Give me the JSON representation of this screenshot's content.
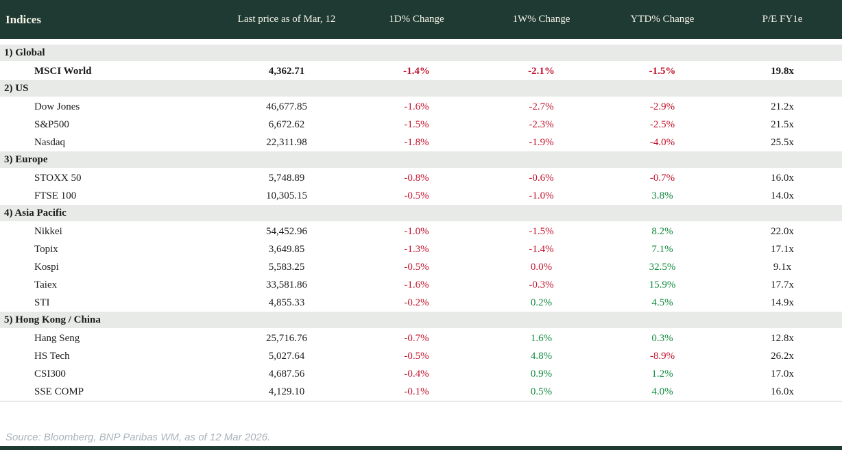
{
  "colors": {
    "header_bg": "#1e3a33",
    "header_text": "#f7f4e9",
    "section_bg": "#e7eae7",
    "negative": "#c1132d",
    "positive": "#0f8a3d",
    "source_text": "#a9b3bb"
  },
  "header": {
    "columns": [
      "Indices",
      "Last price as of Mar, 12",
      "1D% Change",
      "1W% Change",
      "YTD% Change",
      "P/E FY1e"
    ]
  },
  "table": {
    "rows": [
      {
        "type": "section",
        "label": "1) Global"
      },
      {
        "type": "data",
        "bold": true,
        "name": "MSCI World",
        "price": "4,362.71",
        "changes": [
          {
            "v": "-1.4%",
            "c": "neg"
          },
          {
            "v": "-2.1%",
            "c": "neg"
          },
          {
            "v": "-1.5%",
            "c": "neg"
          }
        ],
        "pe": "19.8x"
      },
      {
        "type": "section",
        "label": "2) US"
      },
      {
        "type": "data",
        "name": "Dow Jones",
        "price": "46,677.85",
        "changes": [
          {
            "v": "-1.6%",
            "c": "neg"
          },
          {
            "v": "-2.7%",
            "c": "neg"
          },
          {
            "v": "-2.9%",
            "c": "neg"
          }
        ],
        "pe": "21.2x"
      },
      {
        "type": "data",
        "name": "S&P500",
        "price": "6,672.62",
        "changes": [
          {
            "v": "-1.5%",
            "c": "neg"
          },
          {
            "v": "-2.3%",
            "c": "neg"
          },
          {
            "v": "-2.5%",
            "c": "neg"
          }
        ],
        "pe": "21.5x"
      },
      {
        "type": "data",
        "name": "Nasdaq",
        "price": "22,311.98",
        "changes": [
          {
            "v": "-1.8%",
            "c": "neg"
          },
          {
            "v": "-1.9%",
            "c": "neg"
          },
          {
            "v": "-4.0%",
            "c": "neg"
          }
        ],
        "pe": "25.5x"
      },
      {
        "type": "section",
        "label": "3) Europe"
      },
      {
        "type": "data",
        "name": "STOXX 50",
        "price": "5,748.89",
        "changes": [
          {
            "v": "-0.8%",
            "c": "neg"
          },
          {
            "v": "-0.6%",
            "c": "neg"
          },
          {
            "v": "-0.7%",
            "c": "neg"
          }
        ],
        "pe": "16.0x"
      },
      {
        "type": "data",
        "name": "FTSE 100",
        "price": "10,305.15",
        "changes": [
          {
            "v": "-0.5%",
            "c": "neg"
          },
          {
            "v": "-1.0%",
            "c": "neg"
          },
          {
            "v": "3.8%",
            "c": "pos"
          }
        ],
        "pe": "14.0x"
      },
      {
        "type": "section",
        "label": "4) Asia Pacific"
      },
      {
        "type": "data",
        "name": "Nikkei",
        "price": "54,452.96",
        "changes": [
          {
            "v": "-1.0%",
            "c": "neg"
          },
          {
            "v": "-1.5%",
            "c": "neg"
          },
          {
            "v": "8.2%",
            "c": "pos"
          }
        ],
        "pe": "22.0x"
      },
      {
        "type": "data",
        "name": "Topix",
        "price": "3,649.85",
        "changes": [
          {
            "v": "-1.3%",
            "c": "neg"
          },
          {
            "v": "-1.4%",
            "c": "neg"
          },
          {
            "v": "7.1%",
            "c": "pos"
          }
        ],
        "pe": "17.1x"
      },
      {
        "type": "data",
        "name": "Kospi",
        "price": "5,583.25",
        "changes": [
          {
            "v": "-0.5%",
            "c": "neg"
          },
          {
            "v": "0.0%",
            "c": "neg"
          },
          {
            "v": "32.5%",
            "c": "pos"
          }
        ],
        "pe": "9.1x"
      },
      {
        "type": "data",
        "name": "Taiex",
        "price": "33,581.86",
        "changes": [
          {
            "v": "-1.6%",
            "c": "neg"
          },
          {
            "v": "-0.3%",
            "c": "neg"
          },
          {
            "v": "15.9%",
            "c": "pos"
          }
        ],
        "pe": "17.7x"
      },
      {
        "type": "data",
        "name": "STI",
        "price": "4,855.33",
        "changes": [
          {
            "v": "-0.2%",
            "c": "neg"
          },
          {
            "v": "0.2%",
            "c": "pos"
          },
          {
            "v": "4.5%",
            "c": "pos"
          }
        ],
        "pe": "14.9x"
      },
      {
        "type": "section",
        "label": "5) Hong Kong / China"
      },
      {
        "type": "data",
        "name": "Hang Seng",
        "price": "25,716.76",
        "changes": [
          {
            "v": "-0.7%",
            "c": "neg"
          },
          {
            "v": "1.6%",
            "c": "pos"
          },
          {
            "v": "0.3%",
            "c": "pos"
          }
        ],
        "pe": "12.8x"
      },
      {
        "type": "data",
        "name": "HS Tech",
        "price": "5,027.64",
        "changes": [
          {
            "v": "-0.5%",
            "c": "neg"
          },
          {
            "v": "4.8%",
            "c": "pos"
          },
          {
            "v": "-8.9%",
            "c": "neg"
          }
        ],
        "pe": "26.2x"
      },
      {
        "type": "data",
        "name": "CSI300",
        "price": "4,687.56",
        "changes": [
          {
            "v": "-0.4%",
            "c": "neg"
          },
          {
            "v": "0.9%",
            "c": "pos"
          },
          {
            "v": "1.2%",
            "c": "pos"
          }
        ],
        "pe": "17.0x"
      },
      {
        "type": "data",
        "name": "SSE COMP",
        "price": "4,129.10",
        "changes": [
          {
            "v": "-0.1%",
            "c": "neg"
          },
          {
            "v": "0.5%",
            "c": "pos"
          },
          {
            "v": "4.0%",
            "c": "pos"
          }
        ],
        "pe": "16.0x"
      }
    ]
  },
  "footer": {
    "source": "Source: Bloomberg, BNP Paribas WM, as of 12 Mar 2026."
  }
}
